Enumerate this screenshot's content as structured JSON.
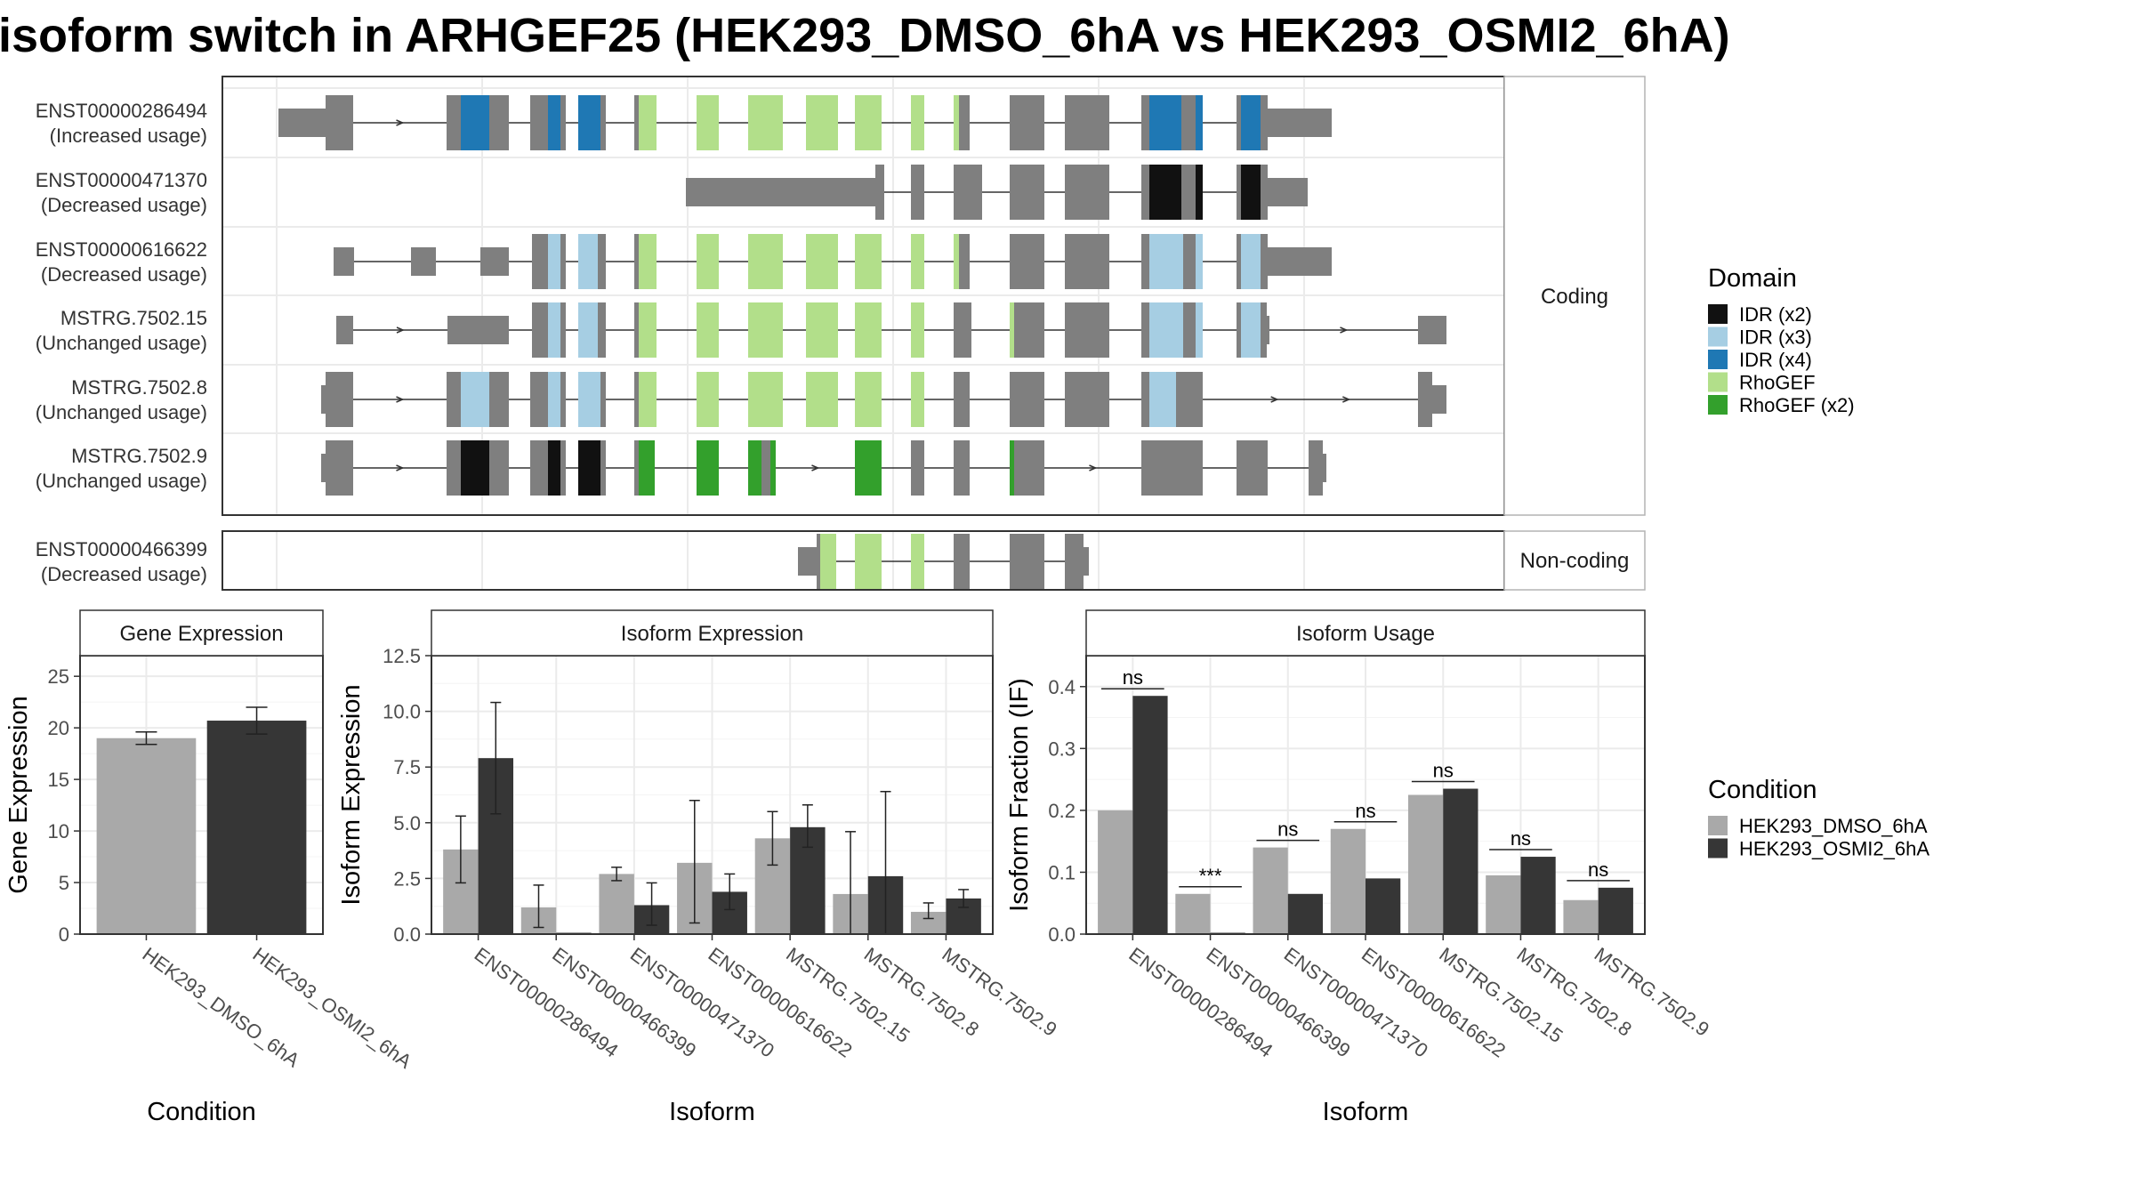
{
  "title": "isoform switch in ARHGEF25 (HEK293_DMSO_6hA vs HEK293_OSMI2_6hA)",
  "colors": {
    "exon": "#7f7f7f",
    "IDR (x2)": "#111111",
    "IDR (x3)": "#a6cee3",
    "IDR (x4)": "#1f78b4",
    "RhoGEF": "#b2df8a",
    "RhoGEF (x2)": "#33a02c",
    "cond1": "#a9a9a9",
    "cond2": "#363636",
    "grid": "#ebebeb",
    "panel_border": "#333333"
  },
  "structure": {
    "facet_coding": "Coding",
    "facet_noncoding": "Non-coding",
    "transcripts": [
      {
        "id": "ENST00000286494",
        "usage": "(Increased usage)",
        "facet": "coding"
      },
      {
        "id": "ENST00000471370",
        "usage": "(Decreased usage)",
        "facet": "coding"
      },
      {
        "id": "ENST00000616622",
        "usage": "(Decreased usage)",
        "facet": "coding"
      },
      {
        "id": "MSTRG.7502.15",
        "usage": "(Unchanged usage)",
        "facet": "coding"
      },
      {
        "id": "MSTRG.7502.8",
        "usage": "(Unchanged usage)",
        "facet": "coding"
      },
      {
        "id": "MSTRG.7502.9",
        "usage": "(Unchanged usage)",
        "facet": "coding"
      },
      {
        "id": "ENST00000466399",
        "usage": "(Decreased usage)",
        "facet": "noncoding"
      }
    ]
  },
  "legend_domain": {
    "title": "Domain",
    "items": [
      "IDR (x2)",
      "IDR (x3)",
      "IDR (x4)",
      "RhoGEF",
      "RhoGEF (x2)"
    ]
  },
  "legend_condition": {
    "title": "Condition",
    "items": [
      "HEK293_DMSO_6hA",
      "HEK293_OSMI2_6hA"
    ]
  },
  "chart_data": [
    {
      "type": "bar",
      "title": "Gene Expression",
      "xlabel": "Condition",
      "ylabel": "Gene Expression",
      "ylim": [
        0,
        27
      ],
      "yticks": [
        0,
        5,
        10,
        15,
        20,
        25
      ],
      "categories": [
        "HEK293_DMSO_6hA",
        "HEK293_OSMI2_6hA"
      ],
      "values": [
        19.0,
        20.7
      ],
      "error_low": [
        18.4,
        19.4
      ],
      "error_high": [
        19.6,
        22.0
      ]
    },
    {
      "type": "bar",
      "title": "Isoform Expression",
      "xlabel": "Isoform",
      "ylabel": "Isoform Expression",
      "ylim": [
        0,
        12.5
      ],
      "yticks": [
        0.0,
        2.5,
        5.0,
        7.5,
        10.0,
        12.5
      ],
      "ytick_labels": [
        "0.0",
        "2.5",
        "5.0",
        "7.5",
        "10.0",
        "12.5"
      ],
      "categories": [
        "ENST00000286494",
        "ENST00000466399",
        "ENST00000471370",
        "ENST00000616622",
        "MSTRG.7502.15",
        "MSTRG.7502.8",
        "MSTRG.7502.9"
      ],
      "series": [
        {
          "name": "HEK293_DMSO_6hA",
          "values": [
            3.8,
            1.2,
            2.7,
            3.2,
            4.3,
            1.8,
            1.0
          ],
          "error_low": [
            2.3,
            0.3,
            2.4,
            0.5,
            3.1,
            0.0,
            0.7
          ],
          "error_high": [
            5.3,
            2.2,
            3.0,
            6.0,
            5.5,
            4.6,
            1.4
          ]
        },
        {
          "name": "HEK293_OSMI2_6hA",
          "values": [
            7.9,
            0.0,
            1.3,
            1.9,
            4.8,
            2.6,
            1.6
          ],
          "error_low": [
            5.4,
            0.0,
            0.4,
            1.1,
            3.9,
            0.0,
            1.2
          ],
          "error_high": [
            10.4,
            0.0,
            2.3,
            2.7,
            5.8,
            6.4,
            2.0
          ]
        }
      ]
    },
    {
      "type": "bar",
      "title": "Isoform Usage",
      "xlabel": "Isoform",
      "ylabel": "Isoform Fraction (IF)",
      "ylim": [
        0,
        0.45
      ],
      "yticks": [
        0.0,
        0.1,
        0.2,
        0.3,
        0.4
      ],
      "ytick_labels": [
        "0.0",
        "0.1",
        "0.2",
        "0.3",
        "0.4"
      ],
      "categories": [
        "ENST00000286494",
        "ENST00000466399",
        "ENST00000471370",
        "ENST00000616622",
        "MSTRG.7502.15",
        "MSTRG.7502.8",
        "MSTRG.7502.9"
      ],
      "series": [
        {
          "name": "HEK293_DMSO_6hA",
          "values": [
            0.2,
            0.065,
            0.14,
            0.17,
            0.225,
            0.095,
            0.055
          ]
        },
        {
          "name": "HEK293_OSMI2_6hA",
          "values": [
            0.385,
            0.0,
            0.065,
            0.09,
            0.235,
            0.125,
            0.075
          ]
        }
      ],
      "significance": [
        "ns",
        "***",
        "ns",
        "ns",
        "ns",
        "ns",
        "ns"
      ]
    }
  ]
}
